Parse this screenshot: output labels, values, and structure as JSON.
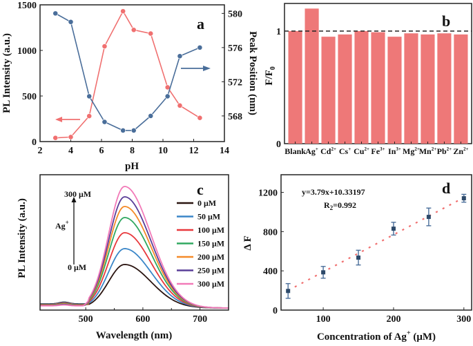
{
  "chart_data": [
    {
      "panel": "a",
      "type": "line",
      "xlabel": "pH",
      "ylabel": "PL Intensity (a.u.)",
      "ylabel_right": "Peak Position (nm)",
      "xlim": [
        2,
        14
      ],
      "ylim": [
        0,
        1500
      ],
      "ylim_right": [
        565,
        581
      ],
      "xticks": [
        2,
        4,
        6,
        8,
        10,
        12,
        14
      ],
      "yticks": [
        0,
        500,
        1000,
        1500
      ],
      "yticks_right": [
        568,
        572,
        576,
        580
      ],
      "series": [
        {
          "axis": "left",
          "color": "#f07070",
          "x": [
            3,
            4,
            5.2,
            6.2,
            7.4,
            8.1,
            9.2,
            10.3,
            11.1,
            12.4
          ],
          "y": [
            40,
            50,
            280,
            1045,
            1430,
            1225,
            1185,
            595,
            395,
            260
          ]
        },
        {
          "axis": "right",
          "color": "#4a6e9a",
          "x": [
            3,
            4,
            5.2,
            6.2,
            7.4,
            8.1,
            9.2,
            10.3,
            11.1,
            12.4
          ],
          "y": [
            580,
            579,
            570.3,
            567.3,
            566.3,
            566.3,
            568,
            570.3,
            575,
            576
          ]
        }
      ]
    },
    {
      "panel": "b",
      "type": "bar",
      "ylabel": {
        "base": "F/F",
        "sub": "0"
      },
      "ylim": [
        0,
        1.25
      ],
      "yticks": [
        0,
        1
      ],
      "reference_line": 1,
      "color": "#ee7878",
      "categories": [
        {
          "base": "Blank",
          "sup": ""
        },
        {
          "base": "Ag",
          "sup": "+"
        },
        {
          "base": "Cd",
          "sup": "2+"
        },
        {
          "base": "Cs",
          "sup": "+"
        },
        {
          "base": "Cu",
          "sup": "2+"
        },
        {
          "base": "Fe",
          "sup": "3+"
        },
        {
          "base": "In",
          "sup": "3+"
        },
        {
          "base": "Mg",
          "sup": "2+"
        },
        {
          "base": "Mn",
          "sup": "2+"
        },
        {
          "base": "Pb",
          "sup": "2+"
        },
        {
          "base": "Zn",
          "sup": "2+"
        }
      ],
      "values": [
        1.0,
        1.2,
        0.95,
        0.97,
        1.0,
        0.99,
        0.95,
        0.98,
        0.97,
        0.98,
        0.97
      ]
    },
    {
      "panel": "c",
      "type": "line",
      "xlabel": "Wavelength (nm)",
      "ylabel": "PL Intensity (a.u.)",
      "xlim": [
        420,
        750
      ],
      "xticks": [
        500,
        600,
        700
      ],
      "peak_wavelength": 568,
      "arrow_label": {
        "base": "Ag",
        "sup": "+"
      },
      "arrow_top": "300 μM",
      "arrow_bottom": "0 μM",
      "series": [
        {
          "name": "0 μM",
          "color": "#2a1410",
          "peak": 63
        },
        {
          "name": "50 μM",
          "color": "#3a86c8",
          "peak": 86
        },
        {
          "name": "100 μM",
          "color": "#e8383c",
          "peak": 109
        },
        {
          "name": "150 μM",
          "color": "#30a860",
          "peak": 131
        },
        {
          "name": "200 μM",
          "color": "#f58a28",
          "peak": 147
        },
        {
          "name": "250 μM",
          "color": "#5a3e98",
          "peak": 161
        },
        {
          "name": "300 μM",
          "color": "#f27ab8",
          "peak": 176
        }
      ]
    },
    {
      "panel": "d",
      "type": "scatter",
      "xlabel": {
        "base": "Concentration of Ag",
        "sup": "+",
        "tail": " (μM)"
      },
      "ylabel": "Δ F",
      "xlim": [
        40,
        311
      ],
      "ylim": [
        0,
        1380
      ],
      "xticks": [
        100,
        200,
        300
      ],
      "yticks": [
        0,
        400,
        800,
        1200
      ],
      "equation": "y=3.79x+10.33197",
      "r2": {
        "base": "R",
        "sub": "2",
        "tail": "=0.992"
      },
      "fit": {
        "slope": 3.79,
        "intercept": 10.33197,
        "color": "#f07070"
      },
      "point_color": "#2e4a6a",
      "x": [
        50,
        100,
        150,
        200,
        250,
        300
      ],
      "y": [
        195,
        385,
        535,
        830,
        950,
        1140
      ],
      "error": [
        75,
        60,
        75,
        65,
        90,
        40
      ]
    }
  ]
}
